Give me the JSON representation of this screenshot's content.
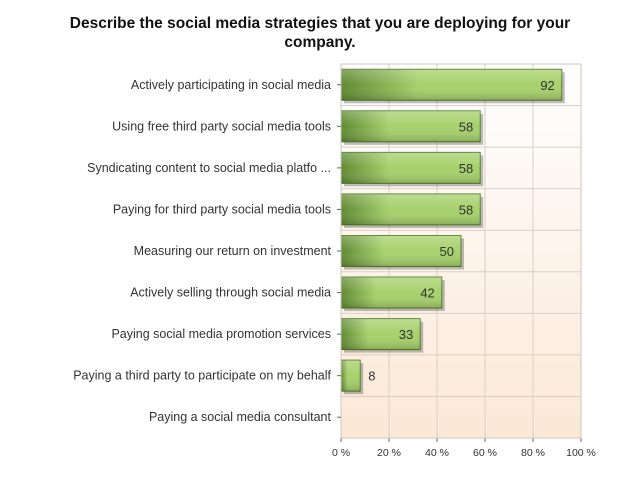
{
  "chart_data": {
    "type": "bar",
    "orientation": "horizontal",
    "title": "Describe the social media strategies that you are deploying for your company.",
    "categories": [
      "Actively participating in social media",
      "Using free third party social media tools",
      "Syndicating content to social media platfo ...",
      "Paying for third party social media tools",
      "Measuring our return on investment",
      "Actively selling through social media",
      "Paying social media promotion services",
      "Paying a third party to participate on my behalf",
      "Paying a social media consultant"
    ],
    "values": [
      92,
      58,
      58,
      58,
      50,
      42,
      33,
      8,
      null
    ],
    "xlim": [
      0,
      100
    ],
    "x_ticks": [
      "0 %",
      "20 %",
      "40 %",
      "60 %",
      "80 %",
      "100 %"
    ],
    "grid": true,
    "legend": "none",
    "colors": {
      "bar_light": "#a6d16c",
      "bar_dark": "#5f8a32",
      "bar_border": "#4f7a2a",
      "plot_bg_top": "#ffffff",
      "plot_bg_bottom": "#fbe8d6",
      "grid": "#d8d0c8",
      "axis": "#666666"
    }
  }
}
